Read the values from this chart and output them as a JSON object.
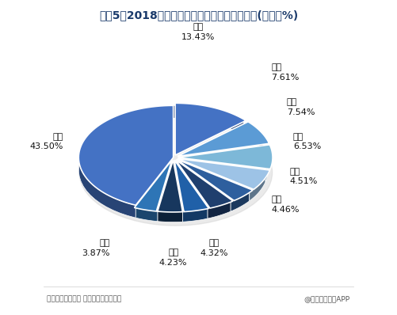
{
  "title": "图表5：2018年中国垃圾无害化处理量区域结构(单位：%)",
  "footer_left": "资料来源：住建部 前瞻产业研究院整理",
  "footer_right": "@前瞻经济学人APP",
  "labels": [
    "广东",
    "江苏",
    "山东",
    "浙江",
    "河南",
    "四川",
    "北京",
    "湖北",
    "福建",
    "其他"
  ],
  "values": [
    13.43,
    7.61,
    7.54,
    6.53,
    4.51,
    4.46,
    4.32,
    4.23,
    3.87,
    43.5
  ],
  "colors": [
    "#4472C4",
    "#5B9BD5",
    "#7DB8D8",
    "#9DC3E6",
    "#2E5F9E",
    "#1F3F6E",
    "#2060A8",
    "#17375E",
    "#2E75B6",
    "#4472C4"
  ],
  "startangle": 90,
  "background_color": "#FFFFFF",
  "title_color": "#1a3a6b",
  "footer_color": "#555555",
  "label_fontsize": 8,
  "title_fontsize": 10,
  "footer_fontsize": 6.5
}
